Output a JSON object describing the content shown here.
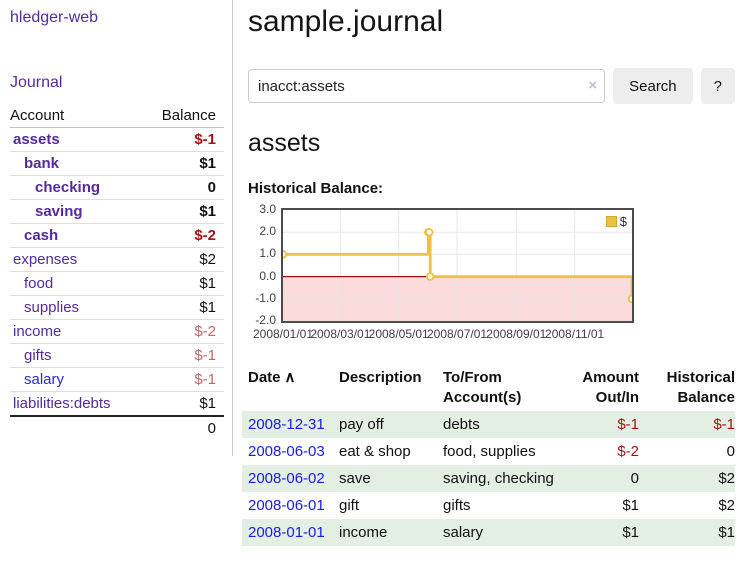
{
  "app": {
    "title": "hledger-web",
    "nav_journal": "Journal"
  },
  "sidebar": {
    "headers": {
      "account": "Account",
      "balance": "Balance"
    },
    "accounts": [
      {
        "name": "assets",
        "balance": "$-1"
      },
      {
        "name": "bank",
        "balance": "$1"
      },
      {
        "name": "checking",
        "balance": "0"
      },
      {
        "name": "saving",
        "balance": "$1"
      },
      {
        "name": "cash",
        "balance": "$-2"
      },
      {
        "name": "expenses",
        "balance": "$2"
      },
      {
        "name": "food",
        "balance": "$1"
      },
      {
        "name": "supplies",
        "balance": "$1"
      },
      {
        "name": "income",
        "balance": "$-2"
      },
      {
        "name": "gifts",
        "balance": "$-1"
      },
      {
        "name": "salary",
        "balance": "$-1"
      },
      {
        "name": "liabilities:debts",
        "balance": "$1"
      }
    ],
    "total": "0"
  },
  "main": {
    "title": "sample.journal",
    "search": {
      "value": "inacct:assets",
      "clear": "×",
      "button_label": "Search",
      "help_label": "?"
    },
    "heading": "assets",
    "chart_title": "Historical Balance:"
  },
  "chart_data": {
    "type": "line",
    "style": "steps",
    "title": "Historical Balance:",
    "series": [
      {
        "name": "$",
        "color": "#edc240",
        "points": [
          [
            "2008-01-01",
            1
          ],
          [
            "2008-06-01",
            2
          ],
          [
            "2008-06-02",
            2
          ],
          [
            "2008-06-03",
            0
          ],
          [
            "2008-12-31",
            -1
          ]
        ]
      }
    ],
    "x_ticks": [
      "2008/01/01",
      "2008/03/01",
      "2008/05/01",
      "2008/07/01",
      "2008/09/01",
      "2008/11/01"
    ],
    "y_ticks": [
      "3.0",
      "2.0",
      "1.0",
      "0.0",
      "-1.0",
      "-2.0"
    ],
    "xlim": [
      "2008/01/01",
      "2008/12/31"
    ],
    "ylim": [
      -2,
      3
    ],
    "grid": true,
    "legend_position": "top-right",
    "negative_fill": "#fbdbdb",
    "zero_line_color": "#8f1010",
    "gridline_color": "#e7e7e7"
  },
  "register": {
    "headers": {
      "date": "Date",
      "sort_indicator": "∧",
      "description": "Description",
      "tofrom_1": "To/From",
      "tofrom_2": "Account(s)",
      "amount_1": "Amount",
      "amount_2": "Out/In",
      "hist_1": "Historical",
      "hist_2": "Balance"
    },
    "rows": [
      {
        "date": "2008-12-31",
        "description": "pay off",
        "accounts": "debts",
        "amount": "$-1",
        "balance": "$-1"
      },
      {
        "date": "2008-06-03",
        "description": "eat & shop",
        "accounts": "food, supplies",
        "amount": "$-2",
        "balance": "0"
      },
      {
        "date": "2008-06-02",
        "description": "save",
        "accounts": "saving, checking",
        "amount": "0",
        "balance": "$2"
      },
      {
        "date": "2008-06-01",
        "description": "gift",
        "accounts": "gifts",
        "amount": "$1",
        "balance": "$2"
      },
      {
        "date": "2008-01-01",
        "description": "income",
        "accounts": "salary",
        "amount": "$1",
        "balance": "$1"
      }
    ]
  },
  "colors": {
    "accent_purple": "#552a9e",
    "link_blue": "#1a1aec",
    "negative_strong": "#a31515",
    "negative_muted": "#c06767",
    "row_green": "#e2efe2",
    "chart_yellow": "#edc240"
  }
}
